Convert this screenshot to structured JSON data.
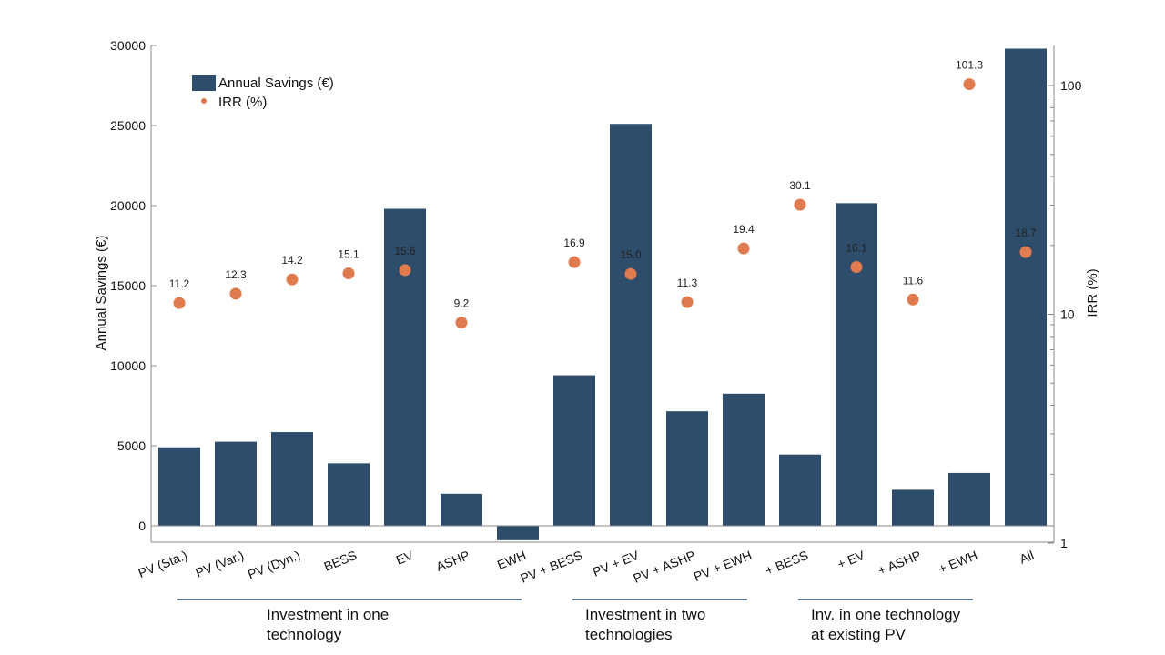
{
  "chart_data": {
    "type": "bar",
    "categories": [
      "PV (Sta.)",
      "PV (Var.)",
      "PV (Dyn.)",
      "BESS",
      "EV",
      "ASHP",
      "EWH",
      "PV + BESS",
      "PV + EV",
      "PV + ASHP",
      "PV + EWH",
      "+ BESS",
      "+ EV",
      "+ ASHP",
      "+ EWH",
      "All"
    ],
    "series": [
      {
        "name": "Annual Savings (€)",
        "type": "bar",
        "axis": "left",
        "values": [
          4900,
          5250,
          5850,
          3900,
          19800,
          2000,
          -900,
          9400,
          25100,
          7150,
          8250,
          4450,
          20150,
          2250,
          3300,
          29800
        ]
      },
      {
        "name": "IRR (%)",
        "type": "scatter",
        "axis": "right",
        "values": [
          11.2,
          12.3,
          14.2,
          15.1,
          15.6,
          9.2,
          null,
          16.9,
          15.0,
          11.3,
          19.4,
          30.1,
          16.1,
          11.6,
          101.3,
          18.7
        ],
        "labels": [
          "11.2",
          "12.3",
          "14.2",
          "15.1",
          "15.6",
          "9.2",
          "",
          "16.9",
          "15.0",
          "11.3",
          "19.4",
          "30.1",
          "16.1",
          "11.6",
          "101.3",
          "18.7"
        ]
      }
    ],
    "ylabel": "Annual Savings (€)",
    "ylim": [
      -900,
      30000
    ],
    "yticks": [
      "0",
      "5000",
      "10000",
      "15000",
      "20000",
      "25000",
      "30000"
    ],
    "y2label": "IRR (%)",
    "y2lim": [
      1,
      150
    ],
    "y2scale": "log",
    "y2ticks": [
      "1",
      "10",
      "100"
    ],
    "legend_position": "top-left",
    "grid": false,
    "colors": {
      "bar": "#2e4d6b",
      "irr": "#e07b50",
      "group_line": "#2e4d6b"
    },
    "groups": [
      {
        "line1": "Investment in one",
        "line2": "technology",
        "first": 0,
        "last": 6
      },
      {
        "line1": "Investment in two",
        "line2": "technologies",
        "first": 7,
        "last": 10
      },
      {
        "line1": "Inv. in one technology",
        "line2": "at existing PV",
        "first": 11,
        "last": 14
      }
    ]
  }
}
